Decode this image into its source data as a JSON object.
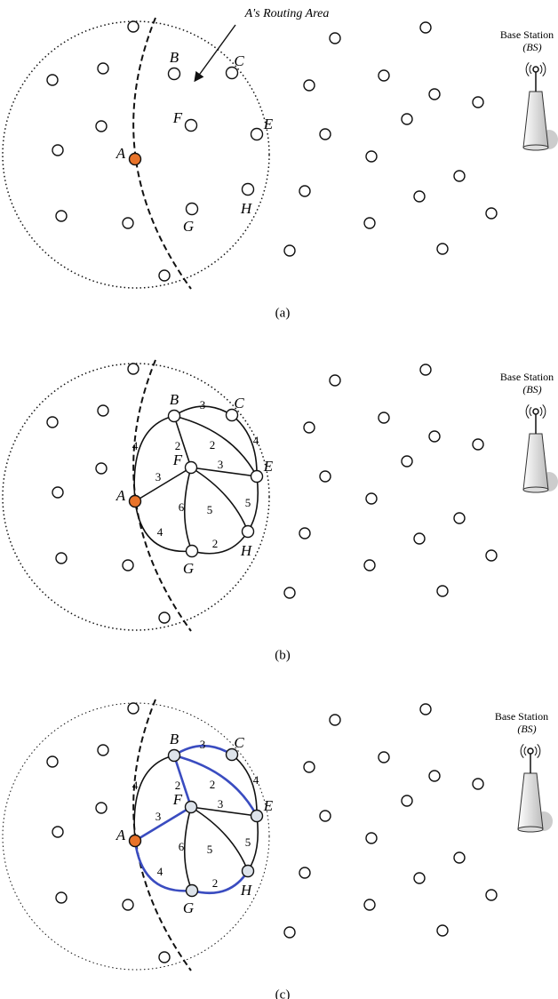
{
  "panels": [
    {
      "caption": "(a)",
      "annotation": "A's Routing Area",
      "base_station": {
        "title": "Base Station",
        "subtitle": "(BS)"
      },
      "nodes": [
        {
          "label": "A",
          "color": "#e8732a"
        },
        {
          "label": "B"
        },
        {
          "label": "C"
        },
        {
          "label": "F"
        },
        {
          "label": "E"
        },
        {
          "label": "G"
        },
        {
          "label": "H"
        }
      ],
      "edges": []
    },
    {
      "caption": "(b)",
      "base_station": {
        "title": "Base Station",
        "subtitle": "(BS)"
      },
      "nodes": [
        {
          "label": "A",
          "color": "#e8732a"
        },
        {
          "label": "B"
        },
        {
          "label": "C"
        },
        {
          "label": "F"
        },
        {
          "label": "E"
        },
        {
          "label": "G"
        },
        {
          "label": "H"
        }
      ],
      "edges": [
        {
          "weight": 4,
          "color": "#111"
        },
        {
          "weight": 3,
          "color": "#111"
        },
        {
          "weight": 2,
          "color": "#111"
        },
        {
          "weight": 2,
          "color": "#111"
        },
        {
          "weight": 4,
          "color": "#111"
        },
        {
          "weight": 3,
          "color": "#111"
        },
        {
          "weight": 3,
          "color": "#111"
        },
        {
          "weight": 6,
          "color": "#111"
        },
        {
          "weight": 5,
          "color": "#111"
        },
        {
          "weight": 5,
          "color": "#111"
        },
        {
          "weight": 4,
          "color": "#111"
        },
        {
          "weight": 2,
          "color": "#111"
        }
      ]
    },
    {
      "caption": "(c)",
      "base_station": {
        "title": "Base Station",
        "subtitle": "(BS)"
      },
      "nodes": [
        {
          "label": "A",
          "color": "#e8732a"
        },
        {
          "label": "B"
        },
        {
          "label": "C"
        },
        {
          "label": "F"
        },
        {
          "label": "E"
        },
        {
          "label": "G"
        },
        {
          "label": "H"
        }
      ],
      "edges": [
        {
          "weight": 4,
          "color": "#111"
        },
        {
          "weight": 3,
          "color": "#3a4cc0"
        },
        {
          "weight": 2,
          "color": "#3a4cc0"
        },
        {
          "weight": 2,
          "color": "#3a4cc0"
        },
        {
          "weight": 4,
          "color": "#111"
        },
        {
          "weight": 3,
          "color": "#111"
        },
        {
          "weight": 3,
          "color": "#3a4cc0"
        },
        {
          "weight": 6,
          "color": "#111"
        },
        {
          "weight": 5,
          "color": "#111"
        },
        {
          "weight": 5,
          "color": "#111"
        },
        {
          "weight": 4,
          "color": "#3a4cc0"
        },
        {
          "weight": 2,
          "color": "#3a4cc0"
        }
      ]
    }
  ]
}
